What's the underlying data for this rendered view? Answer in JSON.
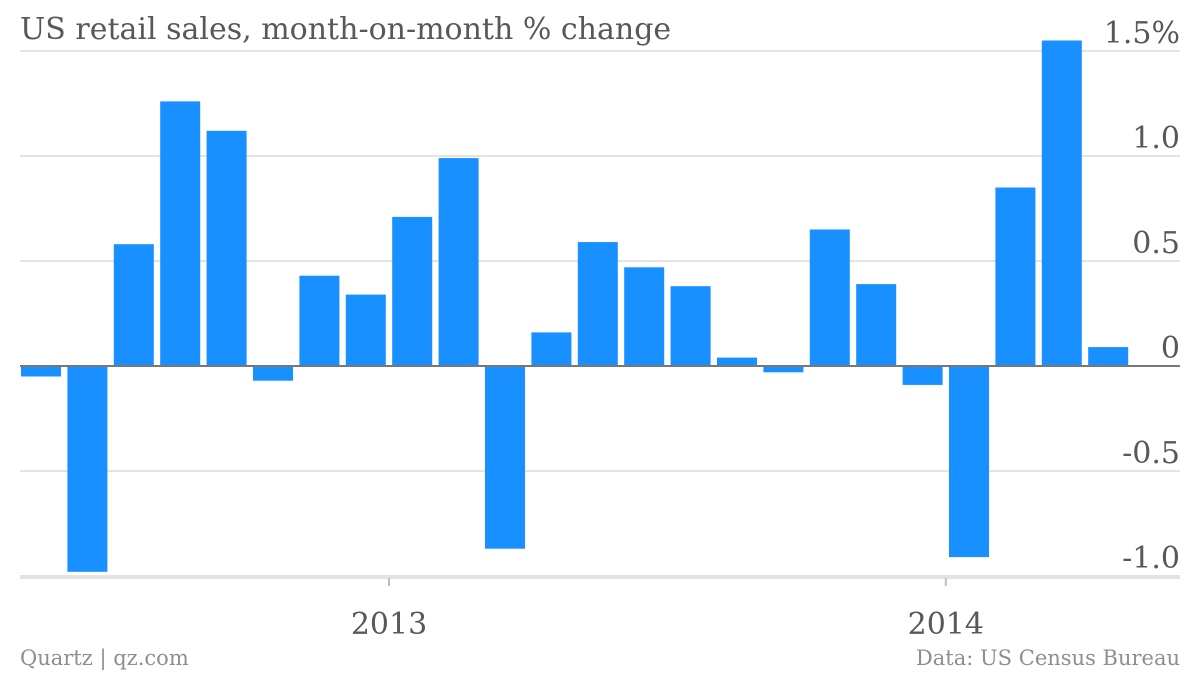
{
  "chart_data": {
    "type": "bar",
    "title": "US retail sales, month-on-month % change",
    "xlabel": "",
    "ylabel": "",
    "categories": [
      "2012-05",
      "2012-06",
      "2012-07",
      "2012-08",
      "2012-09",
      "2012-10",
      "2012-11",
      "2012-12",
      "2013-01",
      "2013-02",
      "2013-03",
      "2013-04",
      "2013-05",
      "2013-06",
      "2013-07",
      "2013-08",
      "2013-09",
      "2013-10",
      "2013-11",
      "2013-12",
      "2014-01",
      "2014-02",
      "2014-03",
      "2014-04"
    ],
    "values": [
      -0.05,
      -0.98,
      0.58,
      1.26,
      1.12,
      -0.07,
      0.43,
      0.34,
      0.71,
      0.99,
      -0.87,
      0.16,
      0.59,
      0.47,
      0.38,
      0.04,
      -0.03,
      0.65,
      0.39,
      -0.09,
      -0.91,
      0.85,
      1.55,
      0.09
    ],
    "ylim": [
      -1.0,
      1.5
    ],
    "yticks": [
      {
        "value": 1.5,
        "label": "1.5%"
      },
      {
        "value": 1.0,
        "label": "1.0"
      },
      {
        "value": 0.5,
        "label": "0.5"
      },
      {
        "value": 0,
        "label": "0"
      },
      {
        "value": -0.5,
        "label": "-0.5"
      },
      {
        "value": -1.0,
        "label": "-1.0"
      }
    ],
    "xticks": [
      {
        "category": "2013-01",
        "label": "2013"
      },
      {
        "category": "2014-01",
        "label": "2014"
      }
    ],
    "grid": true,
    "legend": "none",
    "bar_color": "#1890ff"
  },
  "footer": {
    "source_left": "Quartz | qz.com",
    "source_right": "Data: US Census Bureau"
  }
}
